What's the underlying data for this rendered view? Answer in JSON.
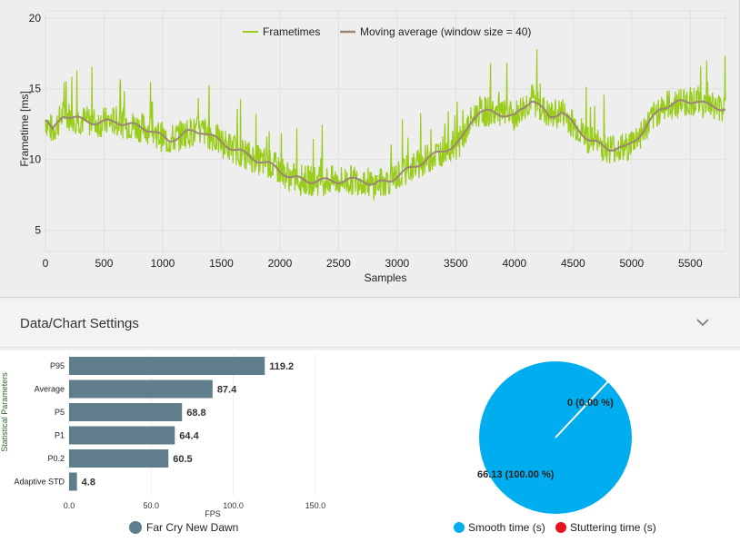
{
  "frametime_chart": {
    "chart_data": {
      "type": "line",
      "title": "",
      "xlabel": "Samples",
      "ylabel": "Frametime [ms]",
      "xlim": [
        0,
        5800
      ],
      "ylim": [
        3.5,
        20.5
      ],
      "xticks": [
        0,
        500,
        1000,
        1500,
        2000,
        2500,
        3000,
        3500,
        4000,
        4500,
        5000,
        5500
      ],
      "yticks": [
        5,
        10,
        15,
        20
      ],
      "series": [
        {
          "name": "Frametimes",
          "color": "#9acd1a",
          "x": [
            0,
            60,
            150,
            300,
            450,
            600,
            750,
            900,
            1050,
            1200,
            1350,
            1500,
            1650,
            1800,
            1950,
            2100,
            2250,
            2400,
            2550,
            2700,
            2800,
            2950,
            3100,
            3250,
            3400,
            3500,
            3550,
            3650,
            3700,
            3850,
            4000,
            4150,
            4300,
            4400,
            4500,
            4650,
            4800,
            4950,
            5100,
            5250,
            5400,
            5550,
            5650,
            5800
          ],
          "values": [
            12.8,
            12.0,
            13.2,
            12.8,
            12.6,
            12.7,
            12.4,
            12.1,
            11.3,
            11.9,
            12.0,
            11.2,
            10.6,
            10.0,
            9.5,
            8.7,
            8.5,
            8.5,
            8.5,
            8.6,
            8.2,
            8.6,
            9.3,
            10.0,
            10.7,
            11.0,
            11.4,
            13.0,
            13.4,
            13.3,
            13.0,
            14.3,
            13.0,
            13.4,
            12.5,
            11.3,
            10.8,
            10.8,
            12.0,
            13.7,
            14.0,
            14.2,
            13.8,
            13.6
          ]
        },
        {
          "name": "Moving average (window size = 40)",
          "color": "#9b8574",
          "x": [
            0,
            60,
            150,
            300,
            450,
            600,
            750,
            900,
            1050,
            1200,
            1350,
            1500,
            1650,
            1800,
            1950,
            2100,
            2250,
            2400,
            2550,
            2700,
            2800,
            2950,
            3100,
            3250,
            3400,
            3500,
            3550,
            3650,
            3700,
            3850,
            4000,
            4150,
            4300,
            4400,
            4500,
            4650,
            4800,
            4950,
            5100,
            5250,
            5400,
            5550,
            5650,
            5800
          ],
          "values": [
            12.8,
            12.0,
            13.2,
            12.8,
            12.6,
            12.7,
            12.4,
            12.1,
            11.3,
            11.9,
            12.0,
            11.2,
            10.6,
            10.0,
            9.5,
            8.7,
            8.5,
            8.5,
            8.5,
            8.6,
            8.2,
            8.6,
            9.3,
            10.0,
            10.7,
            11.0,
            11.4,
            13.0,
            13.4,
            13.3,
            13.0,
            14.3,
            13.0,
            13.4,
            12.5,
            11.3,
            10.8,
            10.8,
            12.0,
            13.7,
            14.0,
            14.2,
            13.8,
            13.6
          ]
        }
      ],
      "legend": "top"
    }
  },
  "settings": {
    "title": "Data/Chart Settings"
  },
  "statistics_chart": {
    "chart_data": {
      "type": "bar",
      "orientation": "horizontal",
      "categories": [
        "P95",
        "Average",
        "P5",
        "P1",
        "P0.2",
        "Adaptive STD"
      ],
      "values": [
        119.2,
        87.4,
        68.8,
        64.4,
        60.5,
        4.8
      ],
      "value_labels": [
        "119.2",
        "87.4",
        "68.8",
        "64.4",
        "60.5",
        "4.8"
      ],
      "xlabel": "FPS",
      "ylabel": "Statistical Parameters",
      "xlim": [
        0,
        175
      ],
      "xticks": [
        "0.0",
        "50.0",
        "100.0",
        "150.0"
      ],
      "bar_color": "#607d8b",
      "legend": [
        "Far Cry New Dawn"
      ]
    }
  },
  "stutter_chart": {
    "chart_data": {
      "type": "pie",
      "slices": [
        {
          "name": "Smooth time (s)",
          "value": 66.13,
          "label": "66.13 (100.00 %)",
          "color": "#00adee"
        },
        {
          "name": "Stuttering time (s)",
          "value": 0,
          "label": "0 (0.00 %)",
          "color": "#e8131b"
        }
      ],
      "legend": [
        "Smooth time (s)",
        "Stuttering time (s)"
      ]
    }
  }
}
